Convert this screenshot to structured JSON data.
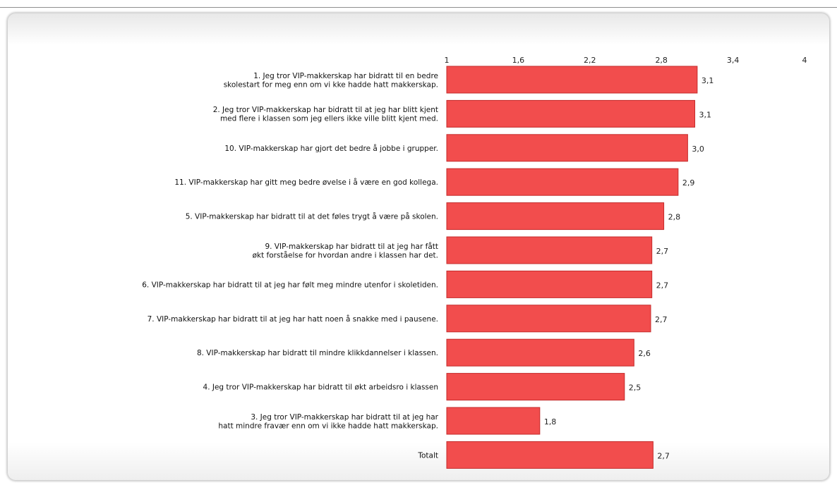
{
  "chart_data": {
    "type": "bar",
    "orientation": "horizontal",
    "title": "",
    "xlabel": "",
    "ylabel": "",
    "xlim": [
      1,
      4
    ],
    "x_ticks": [
      "1",
      "1,6",
      "2,2",
      "2,8",
      "3,4",
      "4"
    ],
    "x_tick_values": [
      1,
      1.6,
      2.2,
      2.8,
      3.4,
      4
    ],
    "grid": false,
    "bar_color": "#f24d4d",
    "categories": [
      [
        "1. Jeg tror VIP-makkerskap har bidratt til en bedre",
        "skolestart for meg enn om vi kke hadde hatt makkerskap."
      ],
      [
        "2. Jeg tror VIP-makkerskap har bidratt til at jeg har blitt kjent",
        "med flere i klassen som jeg ellers ikke ville blitt kjent med."
      ],
      [
        "10. VIP-makkerskap har gjort det bedre å jobbe i grupper."
      ],
      [
        "11. VIP-makkerskap har gitt meg bedre øvelse i å være en god kollega."
      ],
      [
        "5. VIP-makkerskap har bidratt til at det føles trygt å være på skolen."
      ],
      [
        "9. VIP-makkerskap har bidratt til at jeg har fått",
        "økt forståelse for hvordan andre i klassen har det."
      ],
      [
        "6. VIP-makkerskap har bidratt til at jeg har følt meg mindre utenfor i skoletiden."
      ],
      [
        "7. VIP-makkerskap har bidratt til at jeg har hatt noen å snakke med i pausene."
      ],
      [
        "8. VIP-makkerskap har bidratt til mindre klikkdannelser i klassen."
      ],
      [
        "4. Jeg tror VIP-makkerskap har bidratt til økt arbeidsro i klassen"
      ],
      [
        "3. Jeg tror VIP-makkerskap har bidratt til at jeg har",
        "hatt mindre fravær enn om vi ikke hadde hatt makkerskap."
      ],
      [
        "Totalt"
      ]
    ],
    "values": [
      3.1,
      3.08,
      3.02,
      2.94,
      2.82,
      2.72,
      2.72,
      2.71,
      2.57,
      2.49,
      1.78,
      2.73
    ],
    "value_labels": [
      "3,1",
      "3,1",
      "3,0",
      "2,9",
      "2,8",
      "2,7",
      "2,7",
      "2,7",
      "2,6",
      "2,5",
      "1,8",
      "2,7"
    ]
  }
}
